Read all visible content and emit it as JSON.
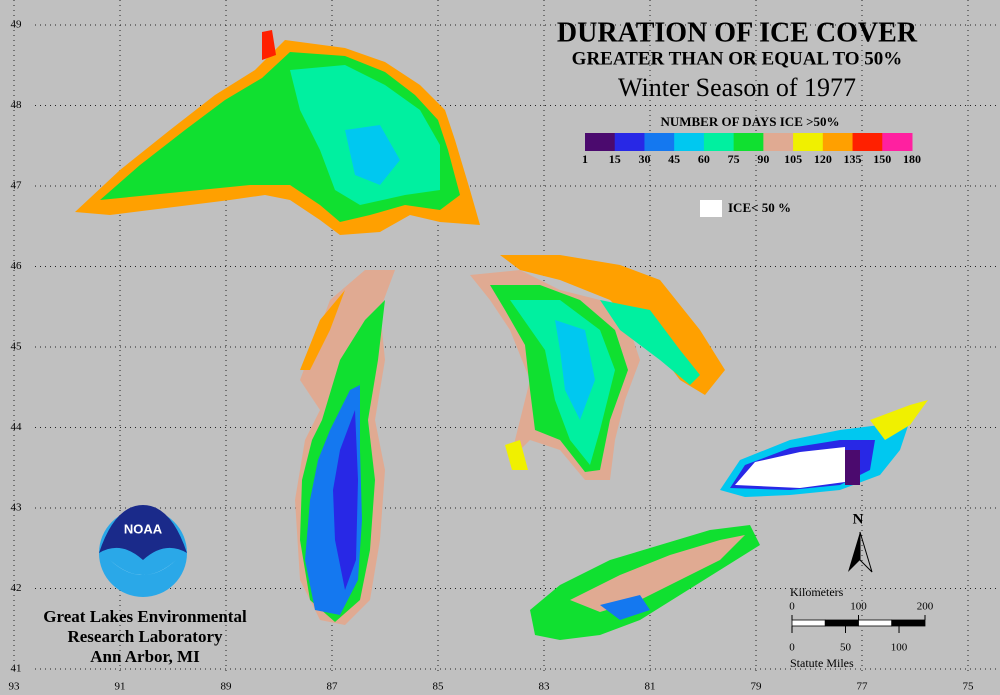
{
  "title": "DURATION OF ICE COVER",
  "subtitle": "GREATER THAN OR EQUAL TO 50%",
  "season": "Winter Season of 1977",
  "legend": {
    "title": "NUMBER OF DAYS ICE >50%",
    "ticks": [
      1,
      15,
      30,
      45,
      60,
      75,
      90,
      105,
      120,
      135,
      150,
      180
    ],
    "colors": [
      "#4b0a6e",
      "#2828e6",
      "#1478f0",
      "#00c8f0",
      "#00f0a0",
      "#10e030",
      "#e0aa92",
      "#f0f000",
      "#ffa000",
      "#ff2000",
      "#ff20a0"
    ],
    "white_label": "ICE< 50 %"
  },
  "latitudes": [
    49,
    48,
    47,
    46,
    45,
    44,
    43,
    42,
    41
  ],
  "longitudes": [
    93,
    91,
    89,
    87,
    85,
    83,
    81,
    79,
    77,
    75
  ],
  "logo": "NOAA",
  "organization": [
    "Great Lakes Environmental",
    "Research Laboratory",
    "Ann Arbor, MI"
  ],
  "north": "N",
  "scale": {
    "kilometers_label": "Kilometers",
    "km_ticks": [
      0,
      100,
      200
    ],
    "miles_ticks": [
      0,
      50,
      100
    ],
    "miles_label": "Statute Miles"
  }
}
